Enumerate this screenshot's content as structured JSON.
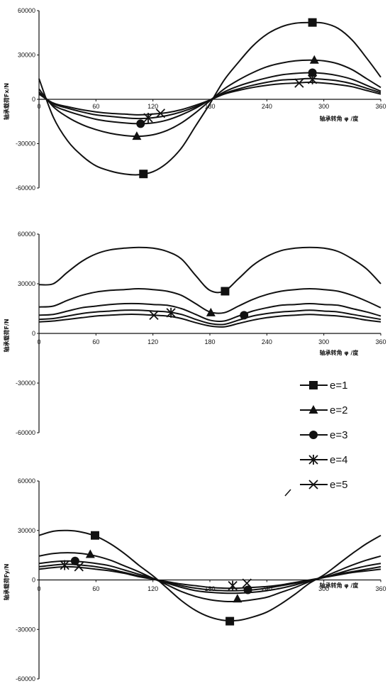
{
  "legend": [
    {
      "label": "e=1",
      "marker": "square"
    },
    {
      "label": "e=2",
      "marker": "triangle"
    },
    {
      "label": "e=3",
      "marker": "circle"
    },
    {
      "label": "e=4",
      "marker": "asterisk"
    },
    {
      "label": "e=5",
      "marker": "cross"
    }
  ],
  "chart_data": [
    {
      "type": "line",
      "ylabel": "轴承载荷Fx/N",
      "xlabel": "轴承转角 φ /度",
      "xticks": [
        0,
        60,
        120,
        180,
        240,
        300,
        360
      ],
      "yticks": [
        60000,
        30000,
        0,
        -30000,
        -60000
      ],
      "xlim": [
        0,
        360
      ],
      "ylim": [
        -60000,
        60000
      ],
      "x": [
        0,
        15,
        30,
        45,
        60,
        75,
        90,
        105,
        120,
        135,
        150,
        165,
        180,
        195,
        210,
        225,
        240,
        255,
        270,
        285,
        300,
        315,
        330,
        345,
        360
      ],
      "series": [
        {
          "name": "e=1",
          "marker": "square",
          "values": [
            14000,
            -12000,
            -28000,
            -38000,
            -45000,
            -48500,
            -50500,
            -51000,
            -49000,
            -43000,
            -33000,
            -18000,
            -3000,
            13000,
            25000,
            36000,
            44000,
            49000,
            51500,
            52000,
            51500,
            48000,
            40000,
            28000,
            15000
          ]
        },
        {
          "name": "e=2",
          "marker": "triangle",
          "values": [
            7000,
            -5000,
            -12000,
            -17000,
            -20500,
            -23000,
            -24500,
            -25000,
            -24000,
            -21000,
            -16000,
            -9000,
            -1000,
            7000,
            13000,
            18000,
            22000,
            24500,
            26000,
            26500,
            26000,
            24000,
            20000,
            14000,
            8000
          ]
        },
        {
          "name": "e=3",
          "marker": "circle",
          "values": [
            5000,
            -4000,
            -8000,
            -11000,
            -13500,
            -15000,
            -16000,
            -16500,
            -16000,
            -14000,
            -10500,
            -6000,
            -500,
            5000,
            9000,
            12000,
            14500,
            16500,
            17500,
            18000,
            17500,
            16000,
            13500,
            9500,
            5500
          ]
        },
        {
          "name": "e=4",
          "marker": "asterisk",
          "values": [
            4000,
            -3000,
            -6000,
            -8500,
            -10500,
            -11500,
            -12500,
            -13000,
            -12500,
            -11000,
            -8500,
            -5000,
            -500,
            4000,
            7000,
            9500,
            11500,
            13000,
            13500,
            14000,
            13500,
            12500,
            10500,
            7500,
            4500
          ]
        },
        {
          "name": "e=5",
          "marker": "cross",
          "values": [
            3500,
            -2500,
            -5000,
            -7000,
            -8500,
            -9500,
            -10000,
            -10500,
            -10000,
            -9000,
            -7000,
            -4000,
            -500,
            3500,
            6000,
            8000,
            9500,
            10500,
            11000,
            11500,
            11000,
            10000,
            8500,
            6000,
            3500
          ]
        }
      ],
      "marker_points": [
        {
          "series": "e=1",
          "x": 110,
          "y": -50500
        },
        {
          "series": "e=1",
          "x": 288,
          "y": 52000
        },
        {
          "series": "e=2",
          "x": 103,
          "y": -25000
        },
        {
          "series": "e=2",
          "x": 290,
          "y": 26500
        },
        {
          "series": "e=3",
          "x": 107,
          "y": -16500
        },
        {
          "series": "e=3",
          "x": 288,
          "y": 18000
        },
        {
          "series": "e=4",
          "x": 115,
          "y": -12500
        },
        {
          "series": "e=4",
          "x": 288,
          "y": 13500
        },
        {
          "series": "e=5",
          "x": 128,
          "y": -9500
        },
        {
          "series": "e=5",
          "x": 274,
          "y": 11000
        }
      ]
    },
    {
      "type": "line",
      "ylabel": "轴承载荷F/N",
      "xlabel": "轴承转角 φ /度",
      "xticks": [
        0,
        60,
        120,
        180,
        240,
        300,
        360
      ],
      "yticks": [
        60000,
        30000,
        0,
        -30000,
        -60000
      ],
      "xlim": [
        0,
        360
      ],
      "ylim": [
        -60000,
        60000
      ],
      "x": [
        0,
        15,
        30,
        45,
        60,
        75,
        90,
        105,
        120,
        135,
        150,
        165,
        180,
        195,
        210,
        225,
        240,
        255,
        270,
        285,
        300,
        315,
        330,
        345,
        360
      ],
      "series": [
        {
          "name": "e=1",
          "marker": "square",
          "values": [
            29500,
            30000,
            37000,
            43500,
            48000,
            50500,
            51500,
            52000,
            51500,
            49500,
            45000,
            35000,
            26000,
            25500,
            33000,
            41000,
            46500,
            50000,
            51500,
            52000,
            51500,
            49500,
            45000,
            39000,
            30000
          ]
        },
        {
          "name": "e=2",
          "marker": "triangle",
          "values": [
            16000,
            16500,
            20000,
            23000,
            25000,
            26000,
            26500,
            27000,
            26500,
            25500,
            23000,
            18000,
            13000,
            12500,
            16500,
            20500,
            23500,
            25500,
            26500,
            27000,
            26500,
            25500,
            23000,
            19500,
            15500
          ]
        },
        {
          "name": "e=3",
          "marker": "circle",
          "values": [
            11000,
            11500,
            13500,
            15500,
            16500,
            17500,
            18000,
            18000,
            17500,
            17000,
            15000,
            11500,
            8000,
            7500,
            10500,
            13500,
            15500,
            17000,
            17500,
            18000,
            17500,
            17000,
            15000,
            13000,
            10500
          ]
        },
        {
          "name": "e=4",
          "marker": "asterisk",
          "values": [
            8500,
            9000,
            10500,
            12000,
            13000,
            13500,
            14000,
            14000,
            13500,
            13000,
            11500,
            8500,
            6000,
            5500,
            8000,
            10500,
            12000,
            13000,
            13500,
            14000,
            13500,
            13000,
            11500,
            10000,
            8500
          ]
        },
        {
          "name": "e=5",
          "marker": "cross",
          "values": [
            7000,
            7500,
            8500,
            9500,
            10500,
            11000,
            11500,
            11500,
            11000,
            10500,
            9000,
            6500,
            4500,
            4000,
            6000,
            8000,
            9500,
            10500,
            11000,
            11500,
            11000,
            10500,
            9500,
            8000,
            7000
          ]
        }
      ],
      "marker_points": [
        {
          "series": "e=1",
          "x": 196,
          "y": 25500
        },
        {
          "series": "e=2",
          "x": 181,
          "y": 12500
        },
        {
          "series": "e=3",
          "x": 216,
          "y": 11000
        },
        {
          "series": "e=4",
          "x": 139,
          "y": 12500
        },
        {
          "series": "e=5",
          "x": 121,
          "y": 11000
        }
      ]
    },
    {
      "type": "line",
      "ylabel": "轴承载荷Fy/N",
      "xlabel": "轴承转角 φ /度",
      "xticks": [
        0,
        60,
        120,
        180,
        240,
        300,
        360
      ],
      "yticks": [
        60000,
        30000,
        0,
        -30000,
        -60000
      ],
      "xlim": [
        0,
        360
      ],
      "ylim": [
        -60000,
        60000
      ],
      "x": [
        0,
        15,
        30,
        45,
        60,
        75,
        90,
        105,
        120,
        135,
        150,
        165,
        180,
        195,
        210,
        225,
        240,
        255,
        270,
        285,
        300,
        315,
        330,
        345,
        360
      ],
      "series": [
        {
          "name": "e=1",
          "marker": "square",
          "values": [
            27000,
            29500,
            30000,
            29000,
            26500,
            22000,
            16000,
            9000,
            2500,
            -5000,
            -12500,
            -18500,
            -22500,
            -24500,
            -24500,
            -22500,
            -19500,
            -14500,
            -8500,
            -2000,
            3000,
            9500,
            16000,
            22000,
            27000
          ]
        },
        {
          "name": "e=2",
          "marker": "triangle",
          "values": [
            14500,
            16000,
            16500,
            16000,
            14500,
            12000,
            8500,
            5000,
            1000,
            -3000,
            -7000,
            -10000,
            -12000,
            -13000,
            -13000,
            -12000,
            -10500,
            -7500,
            -4500,
            -1000,
            2000,
            5500,
            9000,
            12000,
            14500
          ]
        },
        {
          "name": "e=3",
          "marker": "circle",
          "values": [
            10000,
            11000,
            11500,
            11000,
            10000,
            8500,
            6000,
            3500,
            1000,
            -2000,
            -4500,
            -6500,
            -7500,
            -8000,
            -8000,
            -7500,
            -6500,
            -5000,
            -3000,
            -500,
            1500,
            4000,
            6500,
            8500,
            10000
          ]
        },
        {
          "name": "e=4",
          "marker": "asterisk",
          "values": [
            8000,
            9000,
            9500,
            9000,
            8000,
            6500,
            4500,
            2500,
            500,
            -1500,
            -3500,
            -5000,
            -6000,
            -6500,
            -6500,
            -6000,
            -5000,
            -3500,
            -2000,
            -500,
            1500,
            3500,
            5000,
            6500,
            8000
          ]
        },
        {
          "name": "e=5",
          "marker": "cross",
          "values": [
            6500,
            7500,
            8000,
            7500,
            6500,
            5500,
            4000,
            2000,
            500,
            -1000,
            -2500,
            -3500,
            -4500,
            -5000,
            -5000,
            -4500,
            -4000,
            -3000,
            -1500,
            0,
            1500,
            3000,
            4500,
            5500,
            6500
          ]
        }
      ],
      "marker_points": [
        {
          "series": "e=1",
          "x": 59,
          "y": 27000
        },
        {
          "series": "e=1",
          "x": 201,
          "y": -25000
        },
        {
          "series": "e=2",
          "x": 54,
          "y": 15500
        },
        {
          "series": "e=2",
          "x": 209,
          "y": -11500
        },
        {
          "series": "e=3",
          "x": 38,
          "y": 11500
        },
        {
          "series": "e=3",
          "x": 220,
          "y": -6000
        },
        {
          "series": "e=4",
          "x": 27,
          "y": 9000
        },
        {
          "series": "e=4",
          "x": 204,
          "y": -3500
        },
        {
          "series": "e=5",
          "x": 42,
          "y": 8000
        },
        {
          "series": "e=5",
          "x": 219,
          "y": -2000
        }
      ]
    }
  ]
}
